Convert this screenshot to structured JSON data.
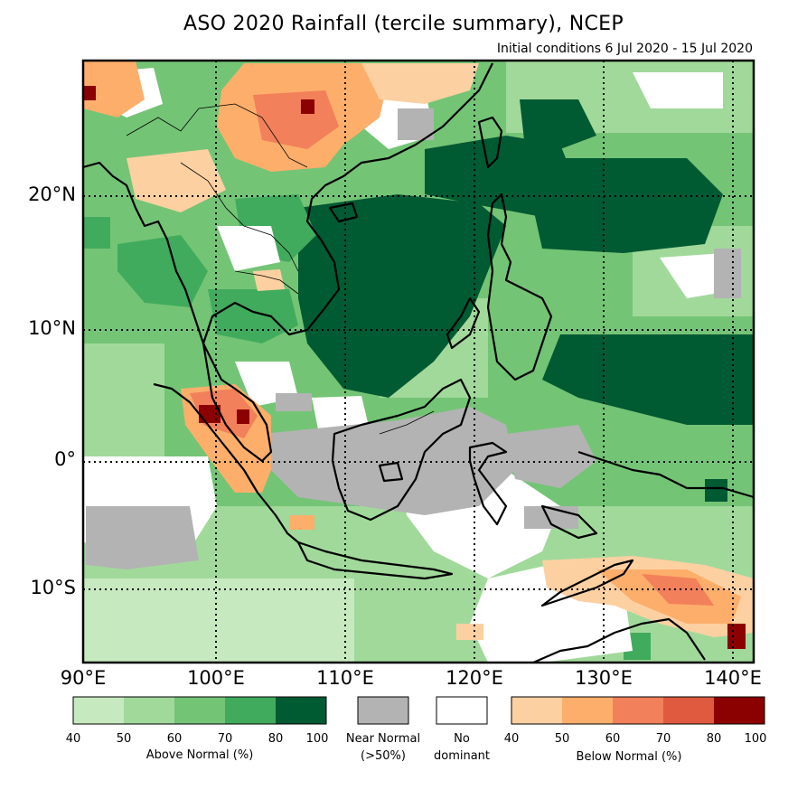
{
  "title": "ASO 2020 Rainfall (tercile summary), NCEP",
  "subtitle": "Initial conditions 6 Jul 2020 - 15 Jul 2020",
  "latitude_labels": [
    "20°N",
    "10°N",
    "0°",
    "10°S"
  ],
  "longitude_labels": [
    "90°E",
    "100°E",
    "110°E",
    "120°E",
    "130°E",
    "140°E"
  ],
  "legend": {
    "above": {
      "label": "Above Normal (%)",
      "ticks": [
        "40",
        "50",
        "60",
        "70",
        "80",
        "100"
      ],
      "colors": [
        "#c7e9c0",
        "#a1d99b",
        "#74c476",
        "#41ab5d",
        "#005a32"
      ]
    },
    "near_normal": {
      "label_line1": "Near Normal",
      "label_line2": "(>50%)",
      "color": "#b3b3b3"
    },
    "no_dominant": {
      "label_line1": "No",
      "label_line2": "dominant",
      "color": "#ffffff"
    },
    "below": {
      "label": "Below Normal (%)",
      "ticks": [
        "40",
        "50",
        "60",
        "70",
        "80",
        "100"
      ],
      "colors": [
        "#fdd0a2",
        "#fdae6b",
        "#f2805a",
        "#e05a3f",
        "#8b0000"
      ]
    }
  },
  "colors": {
    "above_40": "#c7e9c0",
    "above_50": "#a1d99b",
    "above_60": "#74c476",
    "above_70": "#41ab5d",
    "above_80": "#005a32",
    "near_normal": "#b3b3b3",
    "no_dominant": "#ffffff",
    "below_40": "#fdd0a2",
    "below_50": "#fdae6b",
    "below_60": "#f2805a",
    "below_70": "#e05a3f",
    "below_80": "#8b0000"
  }
}
